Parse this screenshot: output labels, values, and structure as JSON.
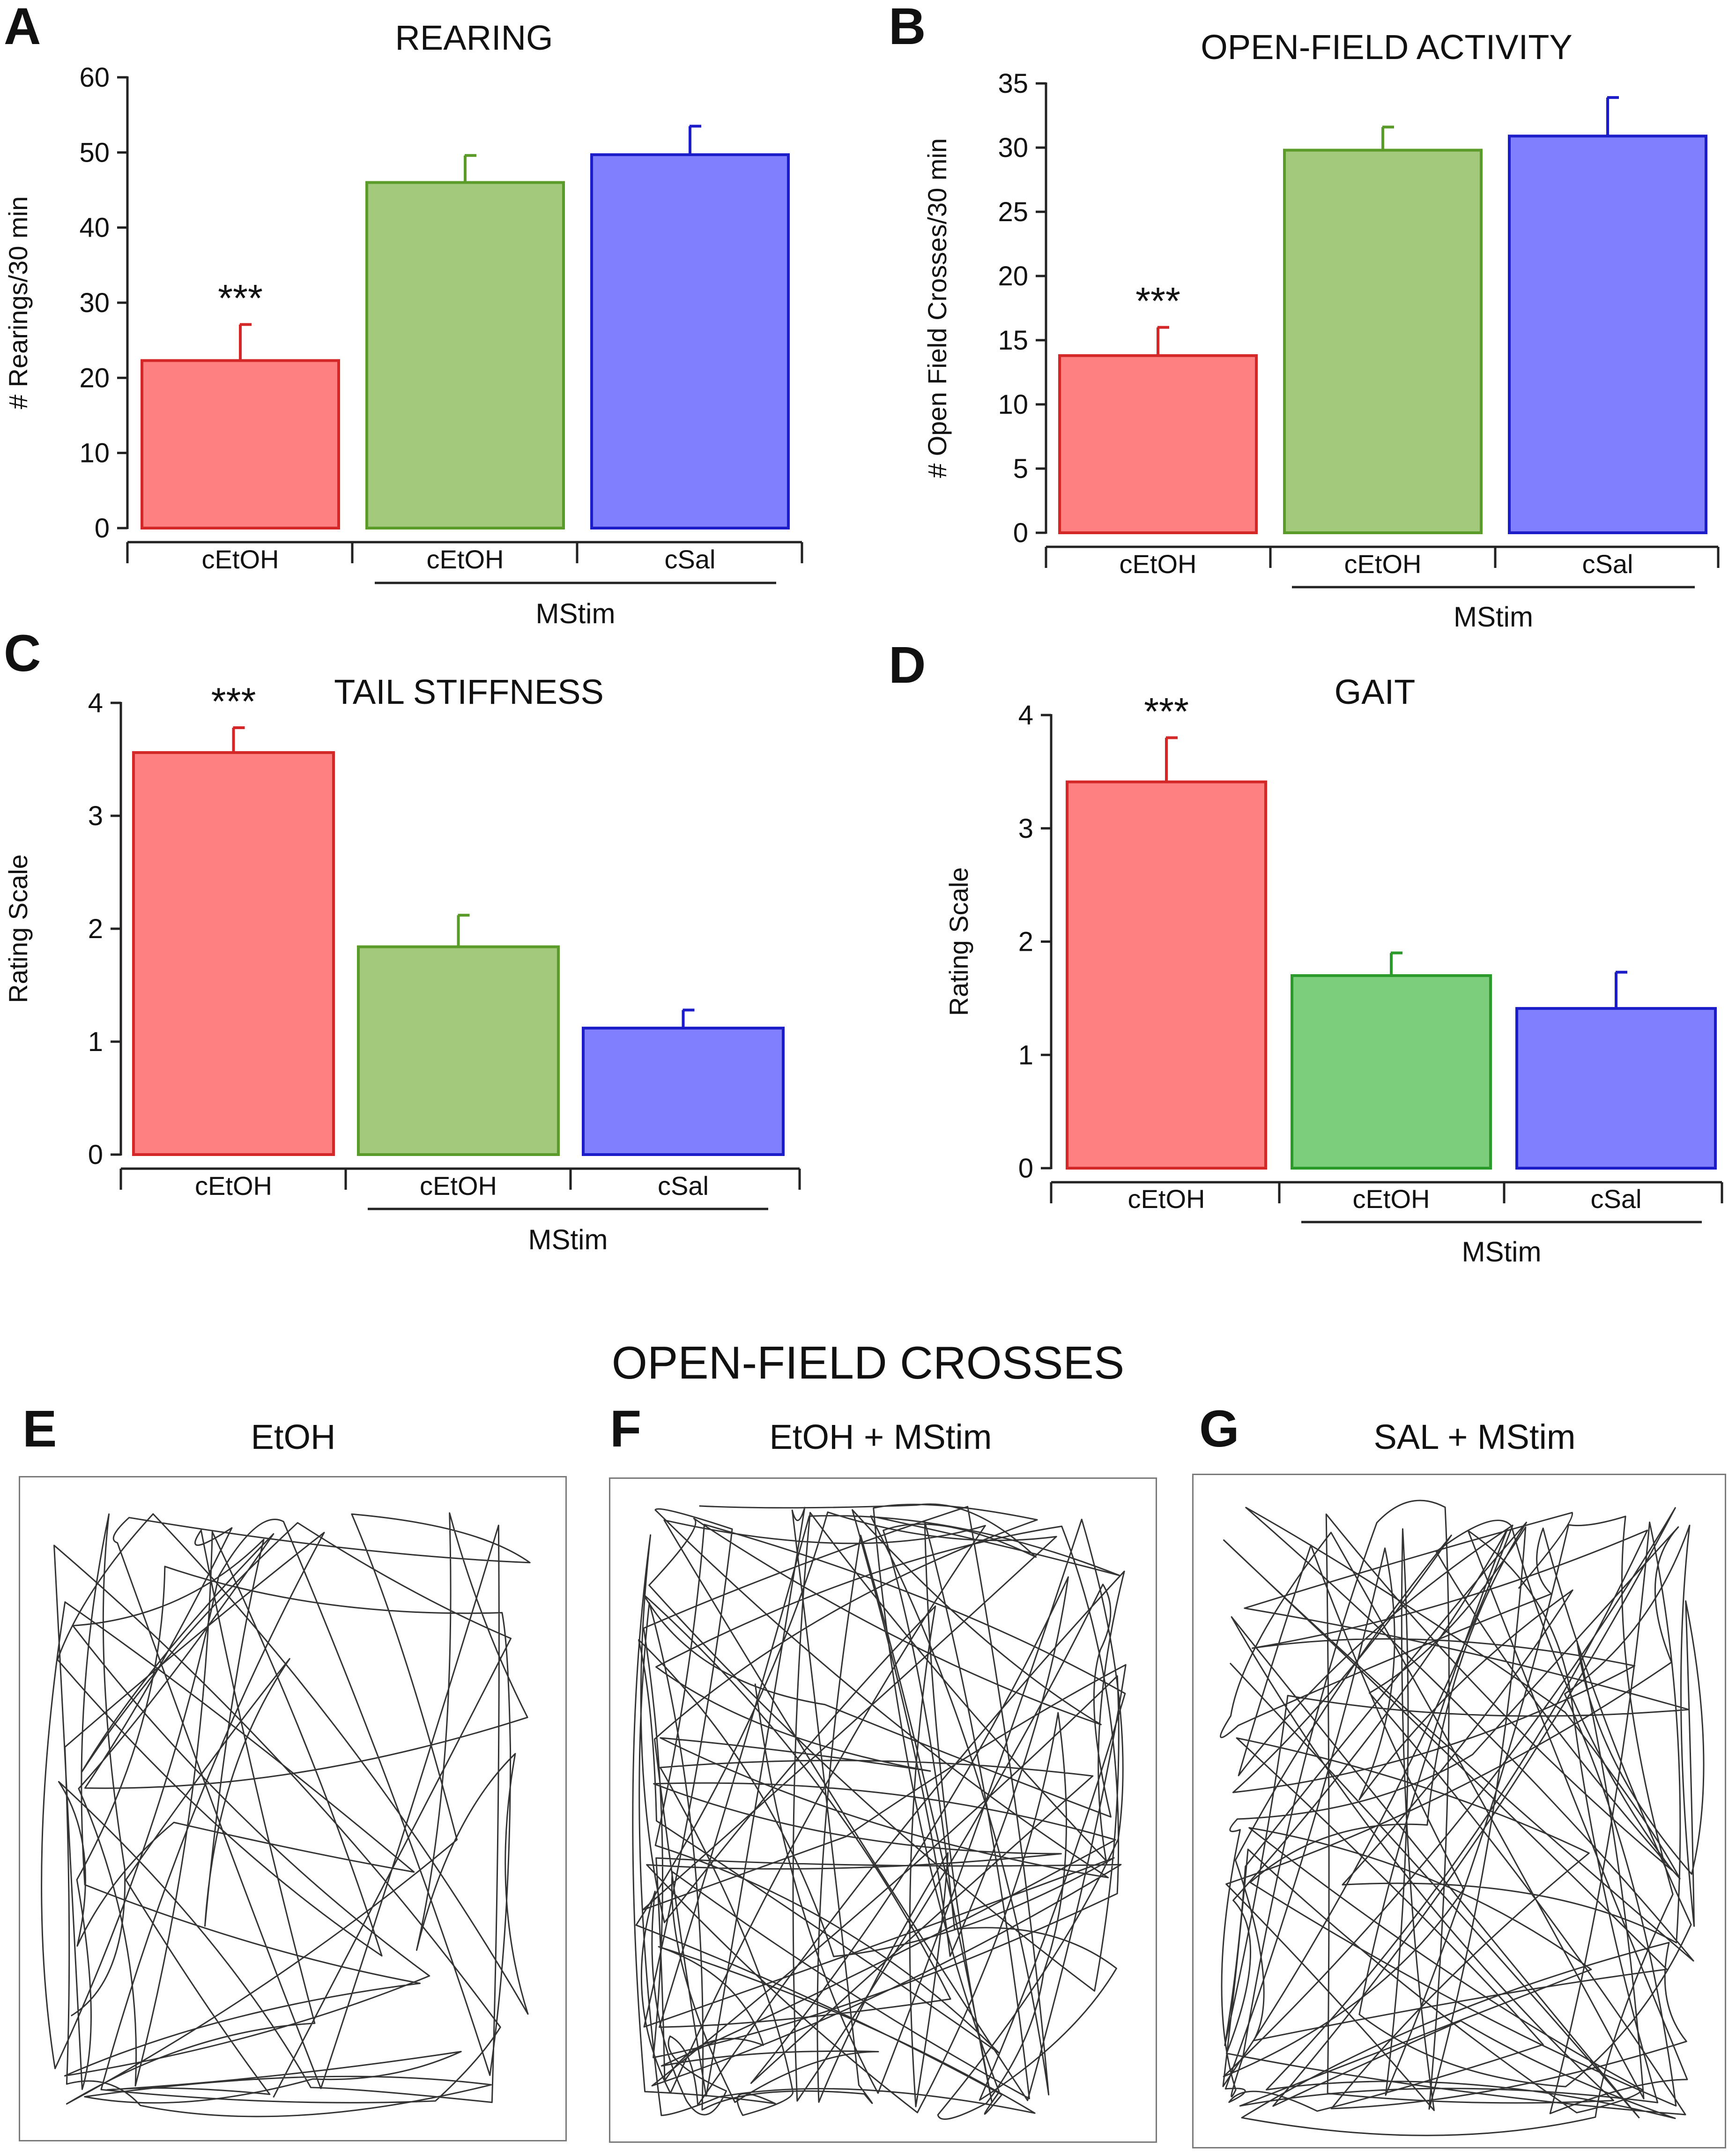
{
  "panels": {
    "A": {
      "letter": "A",
      "title": "REARING"
    },
    "B": {
      "letter": "B",
      "title": "OPEN-FIELD ACTIVITY"
    },
    "C": {
      "letter": "C",
      "title": "TAIL STIFFNESS"
    },
    "D": {
      "letter": "D",
      "title": "GAIT"
    },
    "E": {
      "letter": "E",
      "title": "EtOH"
    },
    "F": {
      "letter": "F",
      "title": "EtOH + MStim"
    },
    "G": {
      "letter": "G",
      "title": "SAL + MStim"
    }
  },
  "tracks_title": "OPEN-FIELD CROSSES",
  "chart_data": [
    {
      "panel": "A",
      "type": "bar",
      "title": "REARING",
      "xlabel": "",
      "ylabel": "# Rearings/30 min",
      "ylim": [
        0,
        60
      ],
      "yticks": [
        0,
        10,
        20,
        30,
        40,
        50,
        60
      ],
      "categories": [
        "cEtOH",
        "cEtOH",
        "cSal"
      ],
      "values": [
        22.3,
        46.0,
        49.7
      ],
      "errors": [
        4.8,
        3.6,
        3.8
      ],
      "annotations": [
        "***",
        "",
        ""
      ],
      "group_label": "MStim",
      "fill_colors": [
        "#ff8080",
        "#a3ca7c",
        "#8080ff"
      ],
      "edge_colors": [
        "#d42828",
        "#5a9b29",
        "#1c1cc8"
      ],
      "grid": false
    },
    {
      "panel": "B",
      "type": "bar",
      "title": "OPEN-FIELD ACTIVITY",
      "xlabel": "",
      "ylabel": "# Open Field Crosses/30 min",
      "ylim": [
        0,
        35
      ],
      "yticks": [
        0,
        5,
        10,
        15,
        20,
        25,
        30,
        35
      ],
      "categories": [
        "cEtOH",
        "cEtOH",
        "cSal"
      ],
      "values": [
        13.8,
        29.8,
        30.9
      ],
      "errors": [
        2.2,
        1.8,
        3.0
      ],
      "annotations": [
        "***",
        "",
        ""
      ],
      "group_label": "MStim",
      "fill_colors": [
        "#ff8080",
        "#a3ca7c",
        "#8080ff"
      ],
      "edge_colors": [
        "#d42828",
        "#5a9b29",
        "#1c1cc8"
      ],
      "grid": false
    },
    {
      "panel": "C",
      "type": "bar",
      "title": "TAIL STIFFNESS",
      "xlabel": "",
      "ylabel": "Rating Scale",
      "ylim": [
        0,
        4
      ],
      "yticks": [
        0,
        1,
        2,
        3,
        4
      ],
      "categories": [
        "cEtOH",
        "cEtOH",
        "cSal"
      ],
      "values": [
        3.56,
        1.84,
        1.12
      ],
      "errors": [
        0.22,
        0.28,
        0.16
      ],
      "annotations": [
        "***",
        "",
        ""
      ],
      "group_label": "MStim",
      "fill_colors": [
        "#ff8080",
        "#a3ca7c",
        "#8080ff"
      ],
      "edge_colors": [
        "#d42828",
        "#5a9b29",
        "#1c1cc8"
      ],
      "grid": false
    },
    {
      "panel": "D",
      "type": "bar",
      "title": "GAIT",
      "xlabel": "",
      "ylabel": "Rating Scale",
      "ylim": [
        0,
        4
      ],
      "yticks": [
        0,
        1,
        2,
        3,
        4
      ],
      "categories": [
        "cEtOH",
        "cEtOH",
        "cSal"
      ],
      "values": [
        3.41,
        1.7,
        1.41
      ],
      "errors": [
        0.39,
        0.2,
        0.32
      ],
      "annotations": [
        "***",
        "",
        ""
      ],
      "group_label": "MStim",
      "fill_colors": [
        "#ff8080",
        "#7ccd7c",
        "#8080ff"
      ],
      "edge_colors": [
        "#d42828",
        "#2a9a2a",
        "#1c1cc8"
      ],
      "grid": false
    }
  ]
}
